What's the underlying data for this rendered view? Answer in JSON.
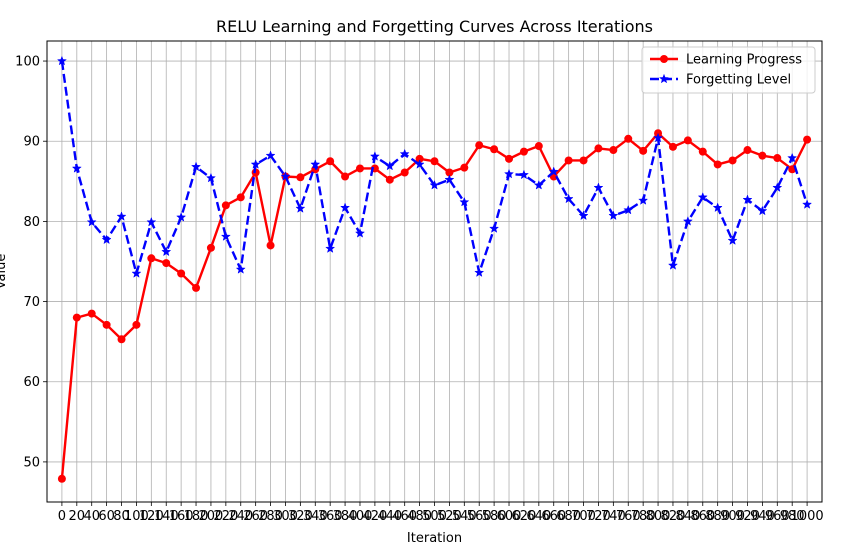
{
  "chart_data": {
    "type": "line",
    "title": "RELU Learning and Forgetting Curves Across Iterations",
    "xlabel": "Iteration",
    "ylabel": "Value",
    "xlim": [
      -20,
      1020
    ],
    "ylim": [
      45,
      102.5
    ],
    "grid": true,
    "legend_position": "top-right",
    "x_ticks": [
      0,
      20,
      40,
      60,
      80,
      100,
      120,
      140,
      160,
      180,
      200,
      220,
      240,
      260,
      280,
      300,
      320,
      340,
      360,
      380,
      400,
      420,
      440,
      460,
      480,
      500,
      520,
      540,
      560,
      580,
      600,
      620,
      640,
      660,
      680,
      700,
      720,
      740,
      760,
      780,
      800,
      820,
      840,
      860,
      880,
      900,
      920,
      940,
      960,
      980,
      1000
    ],
    "y_ticks": [
      50,
      60,
      70,
      80,
      90,
      100
    ],
    "x": [
      0,
      20,
      40,
      60,
      80,
      100,
      120,
      140,
      160,
      180,
      200,
      220,
      240,
      260,
      280,
      300,
      320,
      340,
      360,
      380,
      400,
      420,
      440,
      460,
      480,
      500,
      520,
      540,
      560,
      580,
      600,
      620,
      640,
      660,
      680,
      700,
      720,
      740,
      760,
      780,
      800,
      820,
      840,
      860,
      880,
      900,
      920,
      940,
      960,
      980,
      1000
    ],
    "series": [
      {
        "name": "Learning Progress",
        "color": "#ff0000",
        "marker": "circle",
        "line_style": "solid",
        "values": [
          47.9,
          68.0,
          68.5,
          67.1,
          65.3,
          67.1,
          75.4,
          74.8,
          73.5,
          71.7,
          76.7,
          82.0,
          83.0,
          86.1,
          77.0,
          85.6,
          85.5,
          86.5,
          87.5,
          85.6,
          86.6,
          86.6,
          85.2,
          86.1,
          87.8,
          87.5,
          86.1,
          86.7,
          89.5,
          89.0,
          87.8,
          88.7,
          89.4,
          85.6,
          87.6,
          87.6,
          89.1,
          88.9,
          90.3,
          88.8,
          91.0,
          89.3,
          90.1,
          88.7,
          87.1,
          87.6,
          88.9,
          88.2,
          87.9,
          86.5,
          90.2
        ]
      },
      {
        "name": "Forgetting Level",
        "color": "#0000ff",
        "marker": "star",
        "line_style": "dashed",
        "values": [
          100.0,
          86.6,
          79.9,
          77.7,
          80.6,
          73.5,
          79.9,
          76.2,
          80.5,
          86.8,
          85.4,
          78.1,
          74.0,
          87.1,
          88.2,
          85.6,
          81.6,
          87.1,
          76.6,
          81.7,
          78.5,
          88.1,
          86.9,
          88.4,
          87.1,
          84.5,
          85.2,
          82.4,
          73.6,
          79.1,
          85.9,
          85.8,
          84.5,
          86.2,
          82.8,
          80.7,
          84.2,
          80.7,
          81.4,
          82.6,
          90.4,
          74.5,
          80.0,
          83.0,
          81.7,
          77.6,
          82.7,
          81.3,
          84.2,
          87.9,
          82.1
        ]
      }
    ]
  }
}
